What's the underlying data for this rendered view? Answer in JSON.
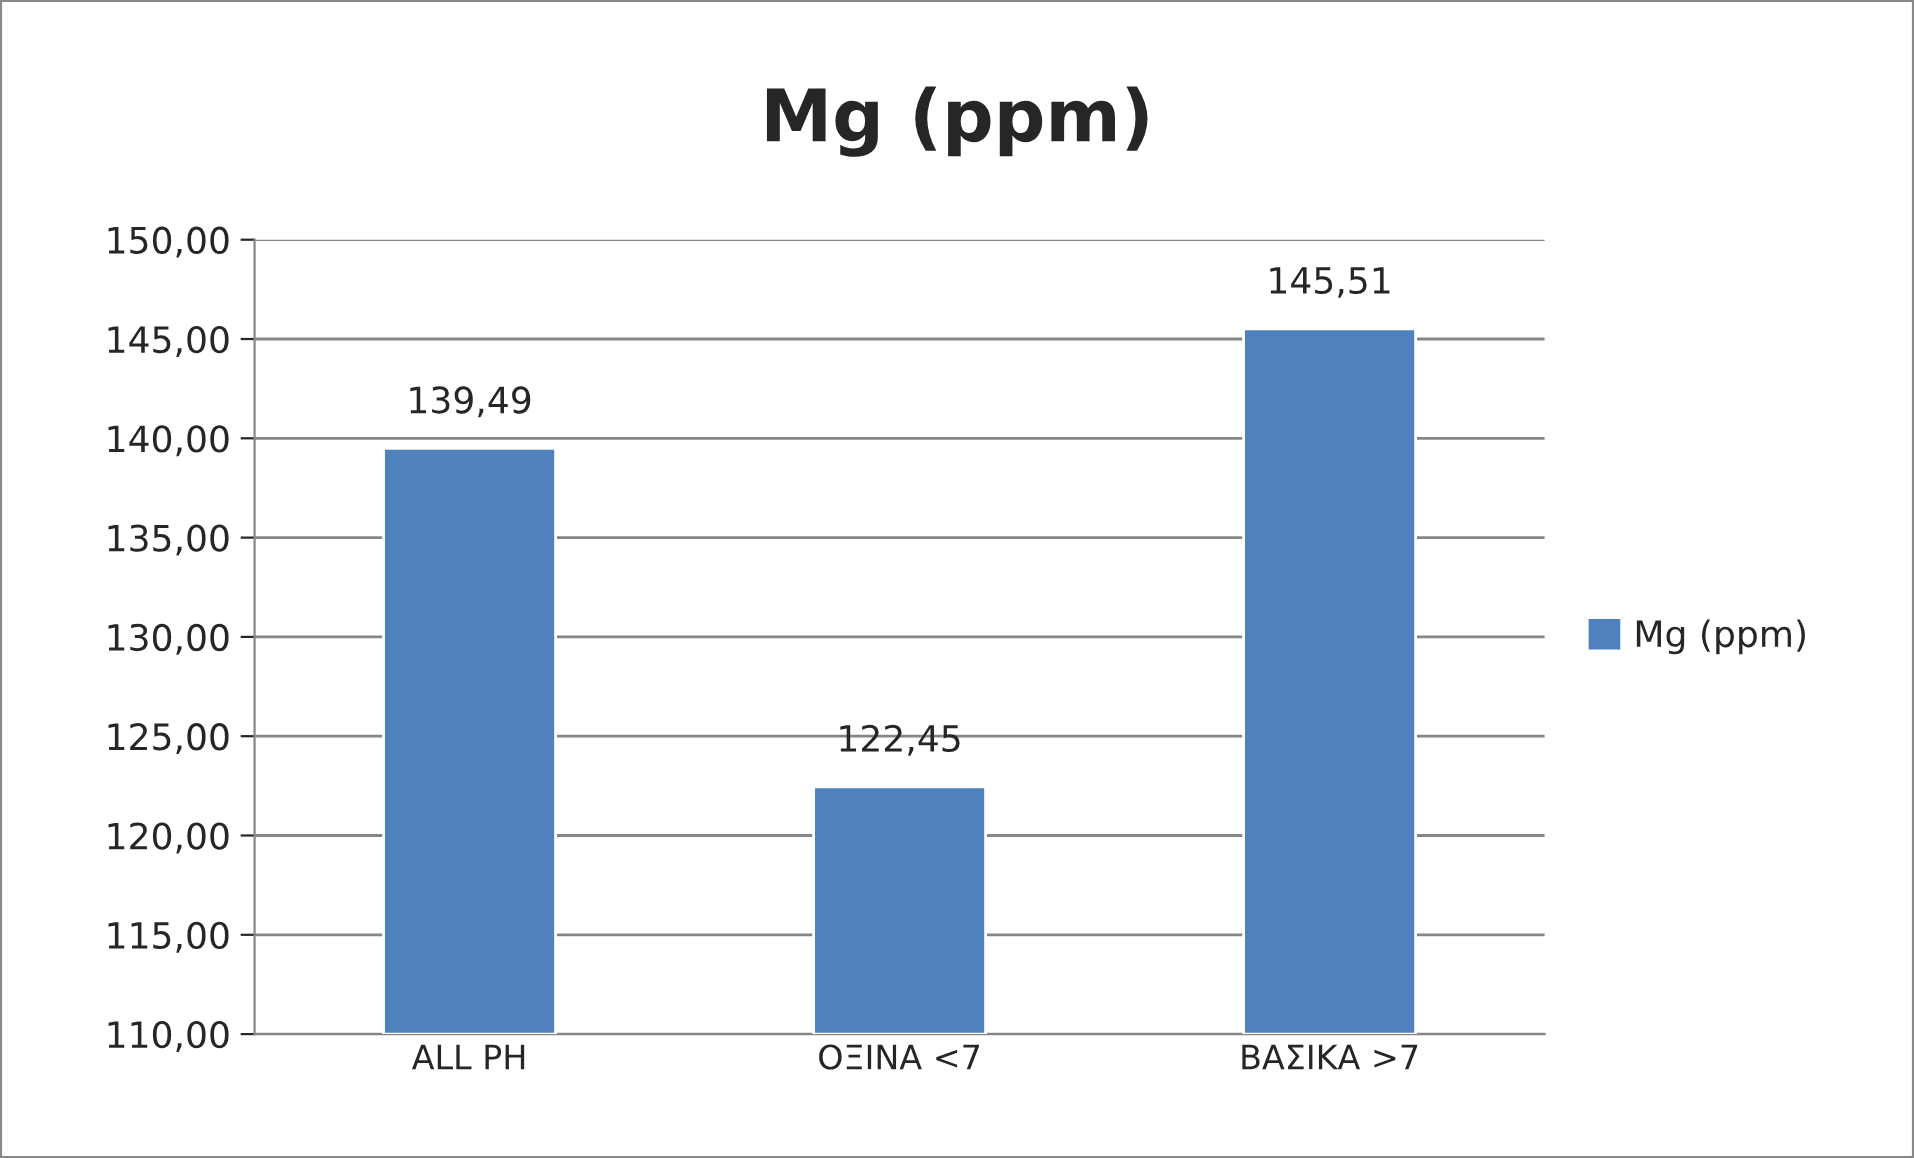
{
  "chart_data": {
    "type": "bar",
    "title": "Mg (ppm)",
    "categories": [
      "ALL PH",
      "ΟΞΙΝΑ <7",
      "ΒΑΣΙΚΑ >7"
    ],
    "series": [
      {
        "name": "Mg (ppm)",
        "color": "#4f81bd",
        "values": [
          139.49,
          122.45,
          145.51
        ],
        "value_labels": [
          "139,49",
          "122,45",
          "145,51"
        ]
      }
    ],
    "ylim": [
      110,
      150
    ],
    "yticks": [
      {
        "value": 110,
        "label": "110,00"
      },
      {
        "value": 115,
        "label": "115,00"
      },
      {
        "value": 120,
        "label": "120,00"
      },
      {
        "value": 125,
        "label": "125,00"
      },
      {
        "value": 130,
        "label": "130,00"
      },
      {
        "value": 135,
        "label": "135,00"
      },
      {
        "value": 140,
        "label": "140,00"
      },
      {
        "value": 145,
        "label": "145,00"
      },
      {
        "value": 150,
        "label": "150,00"
      }
    ],
    "grid": "y",
    "legend": "right"
  }
}
